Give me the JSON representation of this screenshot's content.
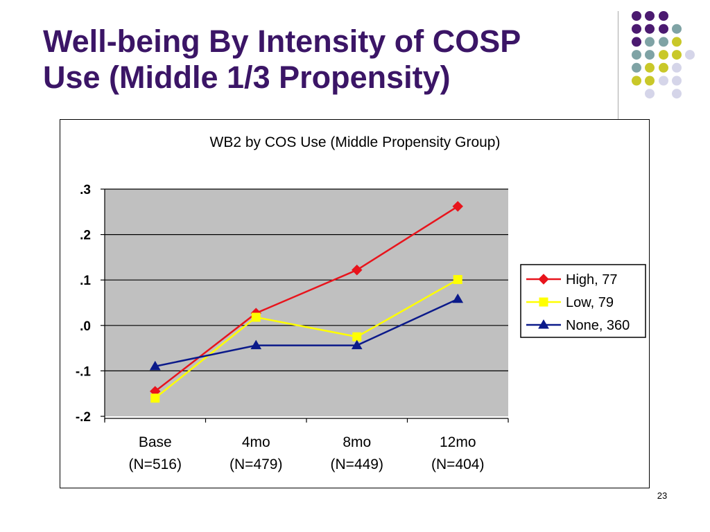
{
  "slide": {
    "title_line1": "Well-being By Intensity of COSP",
    "title_line2": "Use (Middle 1/3 Propensity)",
    "page_number": "23"
  },
  "colors": {
    "title": "#3b1566",
    "plot_background": "#c0c0c0",
    "decor_purple": "#4b1a70",
    "decor_teal": "#7fa3a5",
    "decor_yellow": "#c9c829",
    "decor_lavender": "#d5d5e9"
  },
  "chart_data": {
    "type": "line",
    "title": "WB2 by COS Use (Middle Propensity Group)",
    "categories": [
      [
        "Base",
        "(N=516)"
      ],
      [
        "4mo",
        "(N=479)"
      ],
      [
        "8mo",
        "(N=449)"
      ],
      [
        "12mo",
        "(N=404)"
      ]
    ],
    "yticks": [
      {
        "value": 0.3,
        "label": ".3"
      },
      {
        "value": 0.2,
        "label": ".2"
      },
      {
        "value": 0.1,
        "label": ".1"
      },
      {
        "value": 0.0,
        "label": ".0"
      },
      {
        "value": -0.1,
        "label": "-.1"
      },
      {
        "value": -0.2,
        "label": "-.2"
      }
    ],
    "ylim": [
      -0.2,
      0.3
    ],
    "grid": true,
    "legend_position": "right",
    "series": [
      {
        "name": "High, 77",
        "color": "#e8141c",
        "marker": "diamond",
        "values": [
          -0.145,
          0.027,
          0.122,
          0.262
        ]
      },
      {
        "name": "Low, 79",
        "color": "#ffff00",
        "marker": "square",
        "values": [
          -0.16,
          0.018,
          -0.025,
          0.101
        ]
      },
      {
        "name": "None, 360",
        "color": "#0b1a8a",
        "marker": "triangle",
        "values": [
          -0.09,
          -0.044,
          -0.044,
          0.058
        ]
      }
    ]
  }
}
